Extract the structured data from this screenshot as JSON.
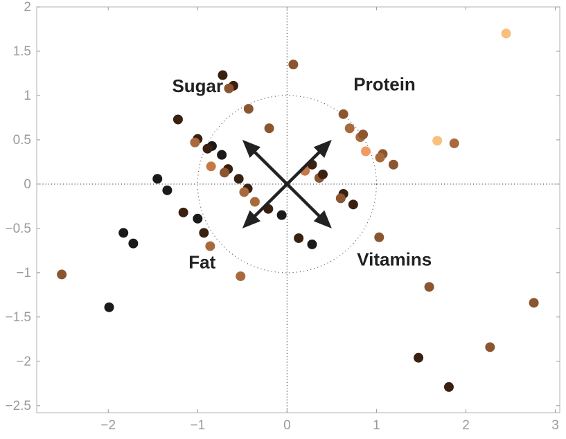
{
  "chart_data": {
    "type": "scatter",
    "title": "",
    "xlabel": "",
    "ylabel": "",
    "xlim": [
      -2.8,
      3.05
    ],
    "ylim": [
      -2.58,
      2.0
    ],
    "xticks": [
      -2,
      -1,
      0,
      1,
      2,
      3
    ],
    "yticks": [
      -2.5,
      -2,
      -1.5,
      -1,
      -0.5,
      0,
      0.5,
      1,
      1.5,
      2
    ],
    "xtick_labels": [
      "−2",
      "−1",
      "0",
      "1",
      "2",
      "3"
    ],
    "ytick_labels": [
      "−2.5",
      "−2",
      "−1.5",
      "−1",
      "−0.5",
      "0",
      "0.5",
      "1",
      "1.5",
      "2"
    ],
    "grid": false,
    "reference_lines": {
      "x": 0,
      "y": 0,
      "style": "dotted",
      "color": "#444444"
    },
    "unit_circle": {
      "radius": 1,
      "style": "dotted",
      "color": "#666666"
    },
    "loading_vectors": [
      {
        "label": "Sugar",
        "x": -0.5,
        "y": 0.5
      },
      {
        "label": "Protein",
        "x": 0.5,
        "y": 0.5
      },
      {
        "label": "Fat",
        "x": -0.5,
        "y": -0.5
      },
      {
        "label": "Vitamins",
        "x": 0.5,
        "y": -0.5
      }
    ],
    "vector_labels": [
      {
        "text": "Sugar",
        "x": -1.0,
        "y": 1.04
      },
      {
        "text": "Protein",
        "x": 1.09,
        "y": 1.06
      },
      {
        "text": "Fat",
        "x": -0.95,
        "y": -0.95
      },
      {
        "text": "Vitamins",
        "x": 1.2,
        "y": -0.92
      }
    ],
    "points": [
      {
        "x": 2.45,
        "y": 1.7,
        "color": "#F8C07C"
      },
      {
        "x": 0.07,
        "y": 1.35,
        "color": "#8B5530"
      },
      {
        "x": -0.72,
        "y": 1.23,
        "color": "#3A2010"
      },
      {
        "x": -0.6,
        "y": 1.11,
        "color": "#3A2010"
      },
      {
        "x": -0.65,
        "y": 1.08,
        "color": "#8B5530"
      },
      {
        "x": -0.43,
        "y": 0.85,
        "color": "#8B5530"
      },
      {
        "x": -1.22,
        "y": 0.73,
        "color": "#3A2010"
      },
      {
        "x": -0.2,
        "y": 0.63,
        "color": "#8B5530"
      },
      {
        "x": 0.63,
        "y": 0.79,
        "color": "#8B5530"
      },
      {
        "x": 0.7,
        "y": 0.63,
        "color": "#A86A3D"
      },
      {
        "x": 0.82,
        "y": 0.53,
        "color": "#A86A3D"
      },
      {
        "x": 0.85,
        "y": 0.56,
        "color": "#8B5530"
      },
      {
        "x": 0.88,
        "y": 0.37,
        "color": "#F09A62"
      },
      {
        "x": 1.68,
        "y": 0.49,
        "color": "#F8C07C"
      },
      {
        "x": 1.87,
        "y": 0.46,
        "color": "#A86A3D"
      },
      {
        "x": 1.07,
        "y": 0.34,
        "color": "#8B5530"
      },
      {
        "x": 1.04,
        "y": 0.3,
        "color": "#A86A3D"
      },
      {
        "x": 1.19,
        "y": 0.22,
        "color": "#8B5530"
      },
      {
        "x": -1.0,
        "y": 0.51,
        "color": "#3A2010"
      },
      {
        "x": -1.03,
        "y": 0.47,
        "color": "#A86A3D"
      },
      {
        "x": -0.84,
        "y": 0.43,
        "color": "#1A1A1A"
      },
      {
        "x": -0.89,
        "y": 0.4,
        "color": "#3A2010"
      },
      {
        "x": -0.73,
        "y": 0.33,
        "color": "#1A1A1A"
      },
      {
        "x": -0.85,
        "y": 0.2,
        "color": "#C57A45"
      },
      {
        "x": -0.66,
        "y": 0.17,
        "color": "#3A2010"
      },
      {
        "x": -0.7,
        "y": 0.13,
        "color": "#8B5530"
      },
      {
        "x": -0.54,
        "y": 0.06,
        "color": "#3A2010"
      },
      {
        "x": -1.45,
        "y": 0.06,
        "color": "#1A1A1A"
      },
      {
        "x": -1.34,
        "y": -0.07,
        "color": "#1A1A1A"
      },
      {
        "x": -0.44,
        "y": -0.05,
        "color": "#3A2010"
      },
      {
        "x": -0.48,
        "y": -0.09,
        "color": "#A86A3D"
      },
      {
        "x": -0.36,
        "y": -0.2,
        "color": "#A86A3D"
      },
      {
        "x": -0.21,
        "y": -0.28,
        "color": "#3A2010"
      },
      {
        "x": -0.06,
        "y": -0.35,
        "color": "#1A1A1A"
      },
      {
        "x": 0.28,
        "y": 0.22,
        "color": "#3A2010"
      },
      {
        "x": 0.2,
        "y": 0.15,
        "color": "#C57A45"
      },
      {
        "x": 0.36,
        "y": 0.07,
        "color": "#8B5530"
      },
      {
        "x": 0.4,
        "y": 0.11,
        "color": "#3A2010"
      },
      {
        "x": 0.63,
        "y": -0.11,
        "color": "#3A2010"
      },
      {
        "x": 0.6,
        "y": -0.16,
        "color": "#8B5530"
      },
      {
        "x": 0.74,
        "y": -0.23,
        "color": "#3A2010"
      },
      {
        "x": -1.16,
        "y": -0.32,
        "color": "#3A2010"
      },
      {
        "x": -1.0,
        "y": -0.39,
        "color": "#1A1A1A"
      },
      {
        "x": -0.93,
        "y": -0.55,
        "color": "#3A2010"
      },
      {
        "x": -0.86,
        "y": -0.7,
        "color": "#A86A3D"
      },
      {
        "x": -1.83,
        "y": -0.55,
        "color": "#1A1A1A"
      },
      {
        "x": -1.72,
        "y": -0.67,
        "color": "#1A1A1A"
      },
      {
        "x": 0.13,
        "y": -0.61,
        "color": "#3A2010"
      },
      {
        "x": 0.28,
        "y": -0.68,
        "color": "#1A1A1A"
      },
      {
        "x": 1.03,
        "y": -0.6,
        "color": "#8B5530"
      },
      {
        "x": -2.52,
        "y": -1.02,
        "color": "#8B5530"
      },
      {
        "x": -0.52,
        "y": -1.04,
        "color": "#A86A3D"
      },
      {
        "x": -1.99,
        "y": -1.39,
        "color": "#1A1A1A"
      },
      {
        "x": 1.59,
        "y": -1.16,
        "color": "#8B5530"
      },
      {
        "x": 2.76,
        "y": -1.34,
        "color": "#8B5530"
      },
      {
        "x": 2.27,
        "y": -1.84,
        "color": "#8B5530"
      },
      {
        "x": 1.47,
        "y": -1.96,
        "color": "#3A2010"
      },
      {
        "x": 1.81,
        "y": -2.29,
        "color": "#3A2010"
      }
    ]
  }
}
